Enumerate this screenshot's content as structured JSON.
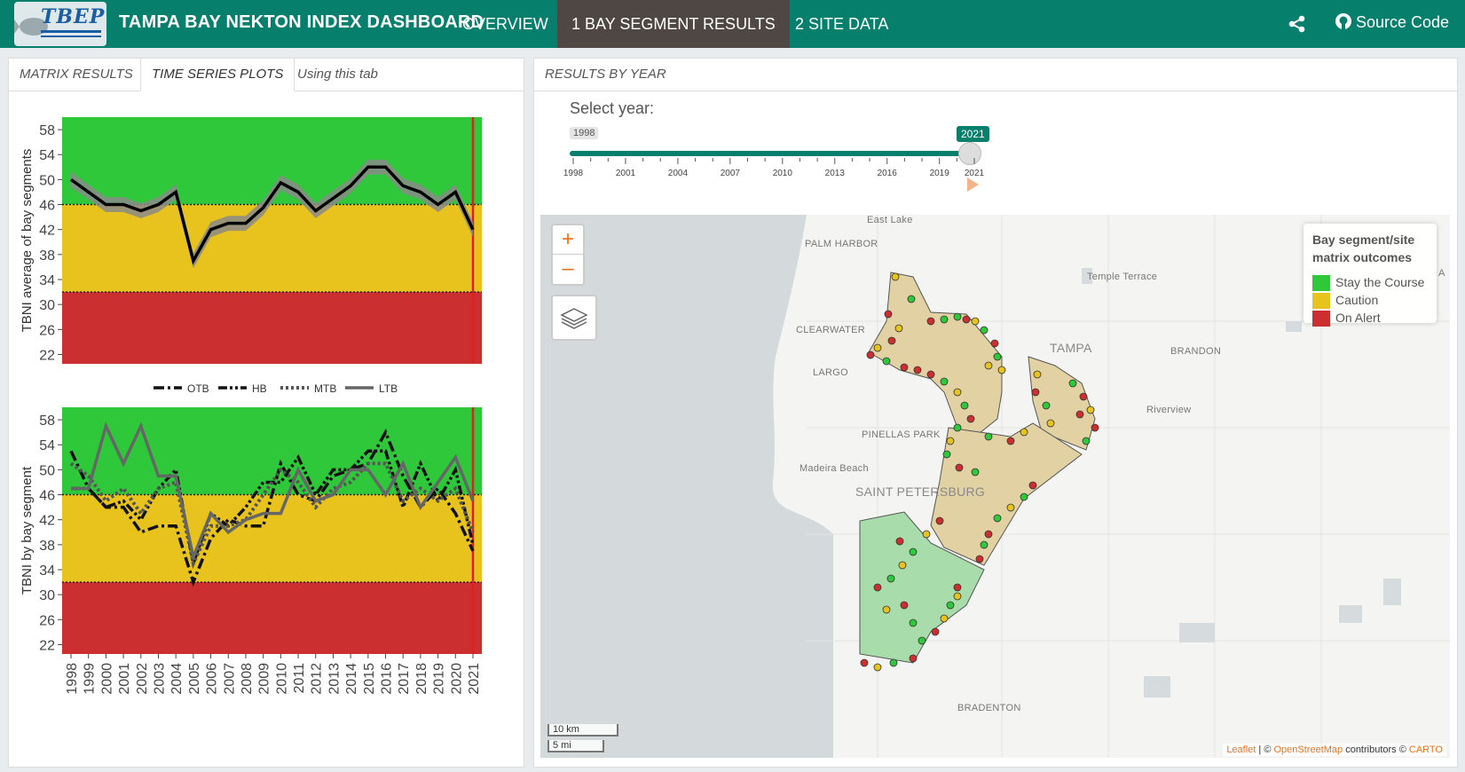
{
  "header": {
    "logo_text": "TBEP",
    "title": "TAMPA BAY NEKTON INDEX DASHBOARD",
    "nav": [
      "OVERVIEW",
      "1 BAY SEGMENT RESULTS",
      "2 SITE DATA"
    ],
    "source_code": "Source Code",
    "share_icon": "share-icon",
    "github_icon": "github-icon"
  },
  "left_tabs": [
    "MATRIX RESULTS",
    "TIME SERIES PLOTS",
    "Using this tab"
  ],
  "right_tab": "RESULTS BY YEAR",
  "slider": {
    "label": "Select year:",
    "min": "1998",
    "max": "2021",
    "value": 2021,
    "ticks": [
      "1998",
      "2001",
      "2004",
      "2007",
      "2010",
      "2013",
      "2016",
      "2019",
      "2021"
    ]
  },
  "colors": {
    "green": "#2ec83a",
    "yellow": "#e8c31d",
    "red": "#cc2f2f",
    "teal": "#06806c"
  },
  "chart_data": [
    {
      "type": "line",
      "ylabel": "TBNI average of bay segments",
      "ylim": [
        20.5,
        60
      ],
      "yticks": [
        22,
        26,
        30,
        34,
        38,
        42,
        46,
        50,
        54,
        58
      ],
      "thresholds": [
        32,
        46
      ],
      "x": [
        1998,
        1999,
        2000,
        2001,
        2002,
        2003,
        2004,
        2005,
        2006,
        2007,
        2008,
        2009,
        2010,
        2011,
        2012,
        2013,
        2014,
        2015,
        2016,
        2017,
        2018,
        2019,
        2020,
        2021
      ],
      "series": [
        {
          "values": [
            50,
            48,
            46,
            46,
            45,
            46,
            48,
            37,
            42,
            43,
            43,
            45.5,
            49.5,
            48,
            45,
            47,
            49,
            52,
            52,
            49,
            48,
            46,
            48,
            42
          ]
        }
      ],
      "current_year": 2021
    },
    {
      "type": "line",
      "ylabel": "TBNI by bay segment",
      "ylim": [
        20.5,
        60
      ],
      "yticks": [
        22,
        26,
        30,
        34,
        38,
        42,
        46,
        50,
        54,
        58
      ],
      "thresholds": [
        32,
        46
      ],
      "x": [
        1998,
        1999,
        2000,
        2001,
        2002,
        2003,
        2004,
        2005,
        2006,
        2007,
        2008,
        2009,
        2010,
        2011,
        2012,
        2013,
        2014,
        2015,
        2016,
        2017,
        2018,
        2019,
        2020,
        2021
      ],
      "legend": [
        "OTB",
        "HB",
        "MTB",
        "LTB"
      ],
      "legend_position": "between-panels",
      "series": [
        {
          "name": "OTB",
          "values": [
            53,
            47,
            44,
            44,
            40,
            41,
            41,
            32,
            39,
            42,
            41,
            41,
            51,
            46,
            45,
            49,
            50,
            51,
            56,
            49,
            44,
            47,
            43,
            37
          ]
        },
        {
          "name": "HB",
          "values": [
            47,
            47,
            44,
            45,
            42,
            47,
            50,
            35,
            43,
            41,
            44,
            48,
            48,
            52,
            46,
            50,
            50,
            53,
            53,
            44,
            51,
            45,
            50,
            38
          ]
        },
        {
          "name": "MTB",
          "values": [
            51,
            49,
            45,
            47,
            43,
            47,
            48,
            35,
            41,
            41,
            42,
            46,
            50,
            48,
            44,
            47,
            48,
            51,
            51,
            45,
            47,
            45,
            47,
            40
          ]
        },
        {
          "name": "LTB",
          "values": [
            47,
            47,
            57,
            51,
            57,
            49,
            49,
            36,
            43,
            40,
            42,
            43,
            43,
            50,
            45,
            46,
            50,
            50,
            46,
            51,
            44,
            48,
            52,
            45
          ]
        }
      ],
      "current_year": 2021
    }
  ],
  "map": {
    "zoom_in": "+",
    "zoom_out": "–",
    "legend_title": "Bay segment/site matrix outcomes",
    "legend_items": [
      {
        "label": "Stay the Course",
        "color": "#2ec83a"
      },
      {
        "label": "Caution",
        "color": "#e8c31d"
      },
      {
        "label": "On Alert",
        "color": "#cc2f2f"
      }
    ],
    "places": [
      "East Lake",
      "PALM HARBOR",
      "Temple Terrace",
      "CLEARWATER",
      "TAMPA",
      "BRANDON",
      "LARGO",
      "Riverview",
      "PINELLAS PARK",
      "Madeira Beach",
      "SAINT PETERSBURG",
      "BRADENTON",
      "A"
    ],
    "scale": [
      "10 km",
      "5 mi"
    ],
    "attribution": {
      "leaflet": "Leaflet",
      "sep": " | © ",
      "osm": "OpenStreetMap",
      "mid": " contributors © ",
      "carto": "CARTO"
    }
  }
}
